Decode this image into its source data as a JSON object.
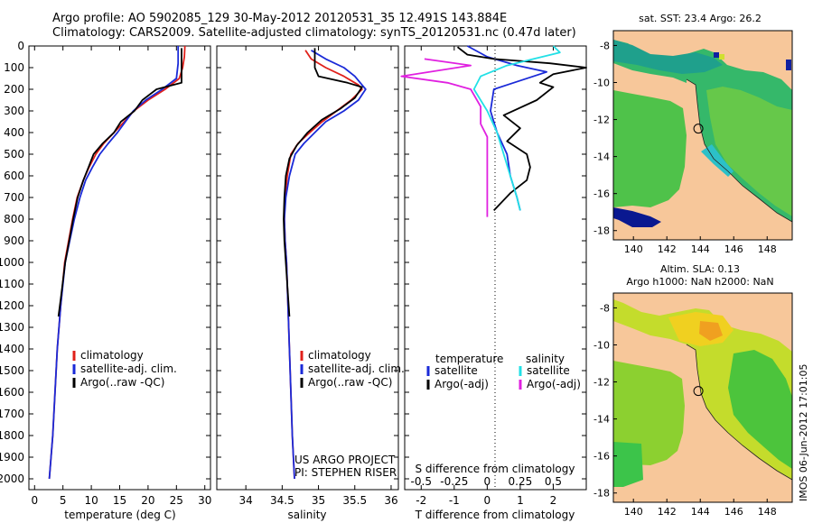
{
  "header": {
    "title_line1": "Argo profile: AO 5902085_129 30-May-2012 20120531_35 12.491S 143.884E",
    "title_line2": "Climatology: CARS2009. Satellite-adjusted climatology: synTS_20120531.nc (0.47d later)"
  },
  "side_text": "IMOS 06-Jun-2012 17:01:05",
  "colors": {
    "red": "#e0201a",
    "blue": "#1a2ad8",
    "black": "#000000",
    "cyan": "#22e0e6",
    "magenta": "#e020e0",
    "land": "#f7c79a"
  },
  "chart_data": [
    {
      "type": "line",
      "id": "temperature",
      "xlabel": "temperature (deg C)",
      "ylabel": "",
      "xlim": [
        -1,
        31
      ],
      "ylim": [
        2050,
        0
      ],
      "xticks": [
        0,
        5,
        10,
        15,
        20,
        25,
        30
      ],
      "yticks": [
        0,
        100,
        200,
        300,
        400,
        500,
        600,
        700,
        800,
        900,
        1000,
        1100,
        1200,
        1300,
        1400,
        1500,
        1600,
        1700,
        1800,
        1900,
        2000
      ],
      "legend": {
        "placement": "lower-left",
        "entries": [
          "climatology",
          "satellite-adj. clim.",
          "Argo(..raw -QC)"
        ]
      },
      "series": [
        {
          "name": "climatology",
          "color": "red",
          "points": [
            [
              26.5,
              0
            ],
            [
              26.4,
              50
            ],
            [
              26.1,
              100
            ],
            [
              25.5,
              150
            ],
            [
              23.0,
              200
            ],
            [
              20.0,
              250
            ],
            [
              17.5,
              300
            ],
            [
              15.8,
              350
            ],
            [
              14.0,
              400
            ],
            [
              12.2,
              450
            ],
            [
              10.8,
              500
            ],
            [
              9.6,
              560
            ],
            [
              8.6,
              620
            ],
            [
              7.5,
              700
            ],
            [
              6.7,
              800
            ],
            [
              6.0,
              900
            ],
            [
              5.3,
              1000
            ],
            [
              4.6,
              1200
            ],
            [
              4.0,
              1400
            ],
            [
              3.6,
              1600
            ],
            [
              3.2,
              1800
            ],
            [
              2.6,
              2000
            ]
          ]
        },
        {
          "name": "satellite-adj. clim.",
          "color": "blue",
          "points": [
            [
              25.3,
              0
            ],
            [
              25.3,
              80
            ],
            [
              25.0,
              150
            ],
            [
              22.5,
              200
            ],
            [
              19.6,
              250
            ],
            [
              17.4,
              300
            ],
            [
              16.0,
              350
            ],
            [
              14.6,
              400
            ],
            [
              13.0,
              450
            ],
            [
              11.5,
              500
            ],
            [
              10.2,
              560
            ],
            [
              9.0,
              620
            ],
            [
              8.0,
              700
            ],
            [
              7.0,
              800
            ],
            [
              6.2,
              900
            ],
            [
              5.4,
              1000
            ],
            [
              4.6,
              1200
            ],
            [
              4.0,
              1400
            ],
            [
              3.6,
              1600
            ],
            [
              3.2,
              1800
            ],
            [
              2.6,
              2000
            ]
          ]
        },
        {
          "name": "Argo(..raw -QC)",
          "color": "black",
          "points": [
            [
              25.9,
              10
            ],
            [
              25.9,
              60
            ],
            [
              25.9,
              120
            ],
            [
              25.9,
              170
            ],
            [
              21.5,
              200
            ],
            [
              19.0,
              250
            ],
            [
              17.6,
              300
            ],
            [
              15.2,
              350
            ],
            [
              14.0,
              400
            ],
            [
              12.0,
              450
            ],
            [
              10.4,
              500
            ],
            [
              9.5,
              560
            ],
            [
              8.6,
              620
            ],
            [
              7.6,
              700
            ],
            [
              6.8,
              800
            ],
            [
              6.1,
              900
            ],
            [
              5.4,
              1000
            ],
            [
              4.7,
              1150
            ],
            [
              4.2,
              1250
            ]
          ]
        }
      ]
    },
    {
      "type": "line",
      "id": "salinity",
      "xlabel": "salinity",
      "ylabel": "",
      "xlim": [
        33.6,
        36.1
      ],
      "ylim": [
        2050,
        0
      ],
      "xticks": [
        34,
        34.5,
        35,
        35.5,
        36
      ],
      "legend": {
        "placement": "lower-left",
        "entries": [
          "climatology",
          "satellite-adj. clim.",
          "Argo(..raw -QC)"
        ]
      },
      "annotation": [
        "US ARGO PROJECT",
        "PI: STEPHEN RISER"
      ],
      "series": [
        {
          "name": "climatology",
          "color": "red",
          "points": [
            [
              34.82,
              20
            ],
            [
              34.9,
              60
            ],
            [
              35.1,
              100
            ],
            [
              35.35,
              140
            ],
            [
              35.55,
              180
            ],
            [
              35.6,
              200
            ],
            [
              35.45,
              250
            ],
            [
              35.25,
              300
            ],
            [
              35.05,
              350
            ],
            [
              34.88,
              400
            ],
            [
              34.72,
              450
            ],
            [
              34.62,
              500
            ],
            [
              34.57,
              600
            ],
            [
              34.54,
              700
            ],
            [
              34.53,
              800
            ],
            [
              34.54,
              900
            ],
            [
              34.56,
              1000
            ],
            [
              34.58,
              1200
            ],
            [
              34.6,
              1400
            ],
            [
              34.62,
              1600
            ],
            [
              34.64,
              1800
            ],
            [
              34.67,
              2000
            ]
          ]
        },
        {
          "name": "satellite-adj. clim.",
          "color": "blue",
          "points": [
            [
              34.9,
              20
            ],
            [
              35.1,
              60
            ],
            [
              35.35,
              100
            ],
            [
              35.5,
              140
            ],
            [
              35.6,
              180
            ],
            [
              35.65,
              200
            ],
            [
              35.55,
              250
            ],
            [
              35.35,
              300
            ],
            [
              35.1,
              350
            ],
            [
              34.95,
              400
            ],
            [
              34.8,
              450
            ],
            [
              34.68,
              500
            ],
            [
              34.6,
              600
            ],
            [
              34.55,
              700
            ],
            [
              34.53,
              800
            ],
            [
              34.54,
              900
            ],
            [
              34.56,
              1000
            ],
            [
              34.58,
              1200
            ],
            [
              34.6,
              1400
            ],
            [
              34.62,
              1600
            ],
            [
              34.64,
              1800
            ],
            [
              34.67,
              2000
            ]
          ]
        },
        {
          "name": "Argo(..raw -QC)",
          "color": "black",
          "points": [
            [
              34.95,
              10
            ],
            [
              34.95,
              60
            ],
            [
              34.95,
              100
            ],
            [
              35.0,
              140
            ],
            [
              35.4,
              170
            ],
            [
              35.6,
              190
            ],
            [
              35.5,
              240
            ],
            [
              35.3,
              290
            ],
            [
              35.05,
              340
            ],
            [
              34.85,
              400
            ],
            [
              34.7,
              460
            ],
            [
              34.6,
              520
            ],
            [
              34.55,
              600
            ],
            [
              34.53,
              700
            ],
            [
              34.52,
              800
            ],
            [
              34.53,
              900
            ],
            [
              34.55,
              1000
            ],
            [
              34.57,
              1100
            ],
            [
              34.6,
              1250
            ]
          ]
        }
      ]
    },
    {
      "type": "line",
      "id": "difference",
      "xlabel": "T difference from climatology",
      "xlabel_top": "S difference from climatology",
      "xlim": [
        -2.5,
        3.0
      ],
      "ylim": [
        2050,
        0
      ],
      "xticks": [
        -2,
        -1,
        0,
        1,
        2
      ],
      "xticks_top": [
        {
          "label": "-0.5",
          "t": -2
        },
        {
          "label": "-0.25",
          "t": -1
        },
        {
          "label": "0",
          "t": 0
        },
        {
          "label": "0.25",
          "t": 1
        },
        {
          "label": "0.5",
          "t": 2
        }
      ],
      "legend": {
        "placement": "lower-center",
        "temperature_heading": "temperature",
        "salinity_heading": "salinity",
        "entries": [
          {
            "label": "satellite",
            "color": "blue"
          },
          {
            "label": "Argo(-adj)",
            "color": "black"
          },
          {
            "label": "satellite",
            "color": "cyan"
          },
          {
            "label": "Argo(-adj)",
            "color": "magenta"
          }
        ]
      },
      "series": [
        {
          "name": "T satellite",
          "color": "blue",
          "points": [
            [
              -0.6,
              0
            ],
            [
              0.0,
              50
            ],
            [
              0.9,
              90
            ],
            [
              1.8,
              120
            ],
            [
              0.6,
              180
            ],
            [
              0.2,
              200
            ],
            [
              0.1,
              300
            ],
            [
              0.3,
              400
            ],
            [
              0.6,
              500
            ],
            [
              0.7,
              600
            ],
            [
              0.9,
              700
            ],
            [
              1.0,
              760
            ]
          ]
        },
        {
          "name": "T Argo(-adj)",
          "color": "black",
          "points": [
            [
              -0.9,
              5
            ],
            [
              -0.6,
              40
            ],
            [
              0.2,
              60
            ],
            [
              1.9,
              80
            ],
            [
              3.0,
              100
            ],
            [
              2.0,
              130
            ],
            [
              1.6,
              170
            ],
            [
              2.0,
              190
            ],
            [
              1.5,
              250
            ],
            [
              0.5,
              320
            ],
            [
              1.0,
              380
            ],
            [
              0.6,
              440
            ],
            [
              1.2,
              500
            ],
            [
              1.3,
              560
            ],
            [
              1.2,
              620
            ],
            [
              0.7,
              680
            ],
            [
              0.2,
              760
            ]
          ]
        },
        {
          "name": "S satellite",
          "color": "cyan",
          "points": [
            [
              2.0,
              0
            ],
            [
              2.2,
              30
            ],
            [
              1.4,
              60
            ],
            [
              0.6,
              90
            ],
            [
              -0.2,
              140
            ],
            [
              -0.4,
              200
            ],
            [
              0.0,
              300
            ],
            [
              0.3,
              400
            ],
            [
              0.5,
              500
            ],
            [
              0.7,
              600
            ],
            [
              0.9,
              700
            ],
            [
              1.0,
              760
            ]
          ]
        },
        {
          "name": "S Argo(-adj)",
          "color": "magenta",
          "points": [
            [
              -1.9,
              60
            ],
            [
              -0.5,
              90
            ],
            [
              -2.6,
              140
            ],
            [
              -1.2,
              170
            ],
            [
              -0.5,
              200
            ],
            [
              -0.2,
              280
            ],
            [
              -0.2,
              360
            ],
            [
              0.0,
              420
            ],
            [
              0.0,
              500
            ],
            [
              0.0,
              600
            ],
            [
              0.0,
              700
            ],
            [
              0.0,
              790
            ]
          ]
        }
      ]
    },
    {
      "type": "heatmap",
      "id": "sst-map",
      "title": "sat. SST: 23.4  Argo: 26.2",
      "xlim": [
        138.8,
        149.5
      ],
      "ylim": [
        -18.5,
        -7.2
      ],
      "xticks": [
        140,
        142,
        144,
        146,
        148
      ],
      "yticks": [
        -8,
        -10,
        -12,
        -14,
        -16,
        -18
      ],
      "marker": {
        "lon": 143.884,
        "lat": -12.491
      }
    },
    {
      "type": "heatmap",
      "id": "sla-map",
      "title_line1": "Altim. SLA: 0.13",
      "title_line2": "Argo h1000: NaN  h2000: NaN",
      "xlim": [
        138.8,
        149.5
      ],
      "ylim": [
        -18.5,
        -7.2
      ],
      "xticks": [
        140,
        142,
        144,
        146,
        148
      ],
      "yticks": [
        -8,
        -10,
        -12,
        -14,
        -16,
        -18
      ],
      "marker": {
        "lon": 143.884,
        "lat": -12.491
      }
    }
  ]
}
